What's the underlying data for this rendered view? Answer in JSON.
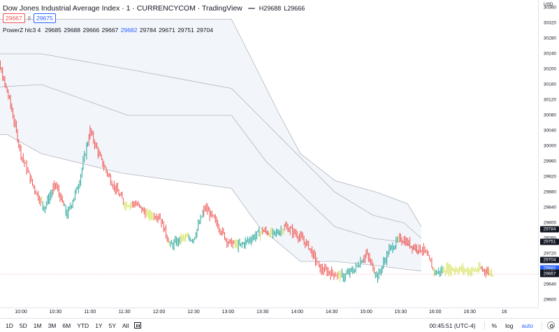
{
  "header": {
    "title": "Dow Jones Industrial Average Index · 1 · CURRENCYCOM · TradingView",
    "high": "H29688",
    "low": "L29666",
    "sell_price": "29667",
    "spread": "8",
    "buy_price": "29675"
  },
  "indicator": {
    "name": "PowerZ hlc3 4",
    "values": [
      "29685",
      "29688",
      "29666",
      "29667",
      "29682",
      "29784",
      "29671",
      "29751",
      "29704"
    ],
    "highlight_index": 4
  },
  "yaxis": {
    "currency": "USD",
    "ticks": [
      "30360",
      "30320",
      "30280",
      "30240",
      "30200",
      "30160",
      "30120",
      "30080",
      "30040",
      "30000",
      "29960",
      "29920",
      "29880",
      "29840",
      "29800",
      "29760",
      "29720",
      "29680",
      "29640",
      "29600"
    ],
    "labels": [
      {
        "text": "29784",
        "color": "#131722"
      },
      {
        "text": "29751",
        "color": "#131722"
      },
      {
        "text": "29704",
        "color": "#131722"
      },
      {
        "text": "29682",
        "color": "#2962ff"
      },
      {
        "text": "29671",
        "color": "#131722"
      },
      {
        "text": "29667",
        "color": "#131722"
      }
    ]
  },
  "xaxis": {
    "ticks": [
      "10:00",
      "10:30",
      "11:00",
      "11:30",
      "12:00",
      "12:30",
      "13:00",
      "13:30",
      "14:00",
      "14:30",
      "15:00",
      "15:30",
      "16:00",
      "16:30",
      "16"
    ]
  },
  "colors": {
    "up": "#26a69a",
    "down": "#ef5350",
    "neutral": "#d4e157",
    "band_fill": "#e8edf5",
    "band_line": "#b2b5be"
  },
  "bottom_bar": {
    "ranges": [
      "1D",
      "5D",
      "1M",
      "3M",
      "6M",
      "YTD",
      "1Y",
      "5Y",
      "All"
    ],
    "clock": "00:45:51 (UTC-4)",
    "percent": "%",
    "log": "log",
    "auto": "auto"
  },
  "chart_data": {
    "type": "candlestick",
    "symbol": "Dow Jones Industrial Average Index",
    "ylim": [
      29580,
      30380
    ],
    "last_price": 29667,
    "session_shape": [
      {
        "time": "09:30",
        "price": 30260
      },
      {
        "time": "09:40",
        "price": 30220
      },
      {
        "time": "09:50",
        "price": 30120
      },
      {
        "time": "10:00",
        "price": 29980
      },
      {
        "time": "10:10",
        "price": 29900
      },
      {
        "time": "10:20",
        "price": 29840
      },
      {
        "time": "10:30",
        "price": 29900
      },
      {
        "time": "10:40",
        "price": 29820
      },
      {
        "time": "10:50",
        "price": 29900
      },
      {
        "time": "11:00",
        "price": 30040
      },
      {
        "time": "11:10",
        "price": 29960
      },
      {
        "time": "11:20",
        "price": 29900
      },
      {
        "time": "11:30",
        "price": 29850
      },
      {
        "time": "11:40",
        "price": 29850
      },
      {
        "time": "11:50",
        "price": 29820
      },
      {
        "time": "12:00",
        "price": 29820
      },
      {
        "time": "12:10",
        "price": 29740
      },
      {
        "time": "12:20",
        "price": 29760
      },
      {
        "time": "12:30",
        "price": 29760
      },
      {
        "time": "12:40",
        "price": 29840
      },
      {
        "time": "12:50",
        "price": 29800
      },
      {
        "time": "13:00",
        "price": 29750
      },
      {
        "time": "13:10",
        "price": 29740
      },
      {
        "time": "13:20",
        "price": 29760
      },
      {
        "time": "13:30",
        "price": 29780
      },
      {
        "time": "13:40",
        "price": 29770
      },
      {
        "time": "13:50",
        "price": 29790
      },
      {
        "time": "14:00",
        "price": 29770
      },
      {
        "time": "14:10",
        "price": 29740
      },
      {
        "time": "14:20",
        "price": 29680
      },
      {
        "time": "14:30",
        "price": 29670
      },
      {
        "time": "14:40",
        "price": 29660
      },
      {
        "time": "14:50",
        "price": 29680
      },
      {
        "time": "15:00",
        "price": 29720
      },
      {
        "time": "15:10",
        "price": 29660
      },
      {
        "time": "15:20",
        "price": 29730
      },
      {
        "time": "15:30",
        "price": 29760
      },
      {
        "time": "15:40",
        "price": 29740
      },
      {
        "time": "15:50",
        "price": 29730
      },
      {
        "time": "16:00",
        "price": 29670
      },
      {
        "time": "16:10",
        "price": 29680
      },
      {
        "time": "16:20",
        "price": 29680
      },
      {
        "time": "16:30",
        "price": 29675
      },
      {
        "time": "16:40",
        "price": 29680
      },
      {
        "time": "16:50",
        "price": 29670
      }
    ],
    "bands": [
      {
        "name": "upper",
        "points": [
          [
            0,
            30330
          ],
          [
            7.5,
            30330
          ],
          [
            8.4,
            30170
          ],
          [
            8.9,
            30080
          ],
          [
            9.5,
            29980
          ],
          [
            10.5,
            29910
          ],
          [
            11.7,
            29880
          ],
          [
            12.6,
            29850
          ],
          [
            13.0,
            29790
          ]
        ]
      },
      {
        "name": "band2",
        "points": [
          [
            0,
            30240
          ],
          [
            2,
            30240
          ],
          [
            4.5,
            30200
          ],
          [
            7.5,
            30150
          ],
          [
            8.5,
            30060
          ],
          [
            10.5,
            29880
          ],
          [
            11.6,
            29820
          ],
          [
            12.5,
            29800
          ],
          [
            13.0,
            29760
          ]
        ]
      },
      {
        "name": "band3",
        "points": [
          [
            0,
            30150
          ],
          [
            2,
            30160
          ],
          [
            4.5,
            30080
          ],
          [
            7.5,
            30080
          ],
          [
            8.5,
            29960
          ],
          [
            10.5,
            29790
          ],
          [
            11.6,
            29760
          ],
          [
            12.5,
            29750
          ],
          [
            13.0,
            29720
          ]
        ]
      },
      {
        "name": "lower",
        "points": [
          [
            0,
            30030
          ],
          [
            1,
            30030
          ],
          [
            2,
            29980
          ],
          [
            4.3,
            29930
          ],
          [
            7.5,
            29890
          ],
          [
            8.3,
            29790
          ],
          [
            9.5,
            29700
          ],
          [
            10.5,
            29700
          ],
          [
            11.6,
            29690
          ],
          [
            12.5,
            29680
          ],
          [
            13.0,
            29675
          ]
        ]
      }
    ]
  }
}
